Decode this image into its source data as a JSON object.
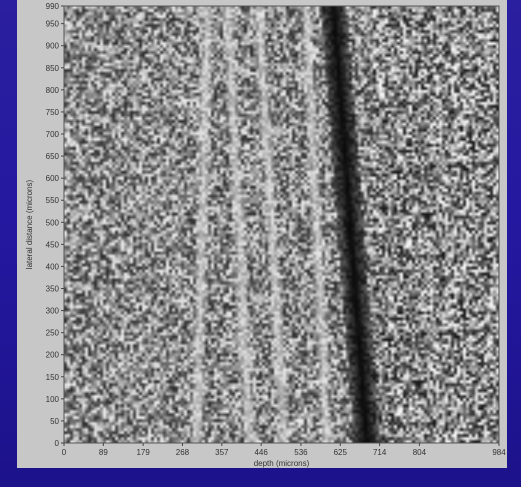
{
  "chart_data": {
    "type": "heatmap",
    "title": "",
    "xlabel": "depth (microns)",
    "ylabel": "lateral distance (microns)",
    "xlim": [
      0,
      984
    ],
    "ylim": [
      0,
      990
    ],
    "x_ticks": [
      "0",
      "89",
      "179",
      "268",
      "357",
      "446",
      "536",
      "625",
      "714",
      "804",
      "984"
    ],
    "y_ticks": [
      "0",
      "50",
      "100",
      "150",
      "200",
      "250",
      "300",
      "350",
      "400",
      "450",
      "500",
      "550",
      "600",
      "650",
      "700",
      "750",
      "800",
      "850",
      "900",
      "950",
      "990"
    ],
    "colormap": "grayscale",
    "colors": {
      "background": "#2418a0",
      "panel": "#c7c7c7",
      "dark_band": "#111111",
      "light_band": "#dcdcdc"
    },
    "bands": [
      {
        "kind": "dark",
        "depth_bottom": 685,
        "depth_top": 610
      },
      {
        "kind": "light",
        "depth_bottom": 595,
        "depth_top": 548
      },
      {
        "kind": "light",
        "depth_bottom": 500,
        "depth_top": 440
      },
      {
        "kind": "light",
        "depth_bottom": 420,
        "depth_top": 370
      },
      {
        "kind": "light",
        "depth_bottom": 300,
        "depth_top": 325
      }
    ]
  }
}
